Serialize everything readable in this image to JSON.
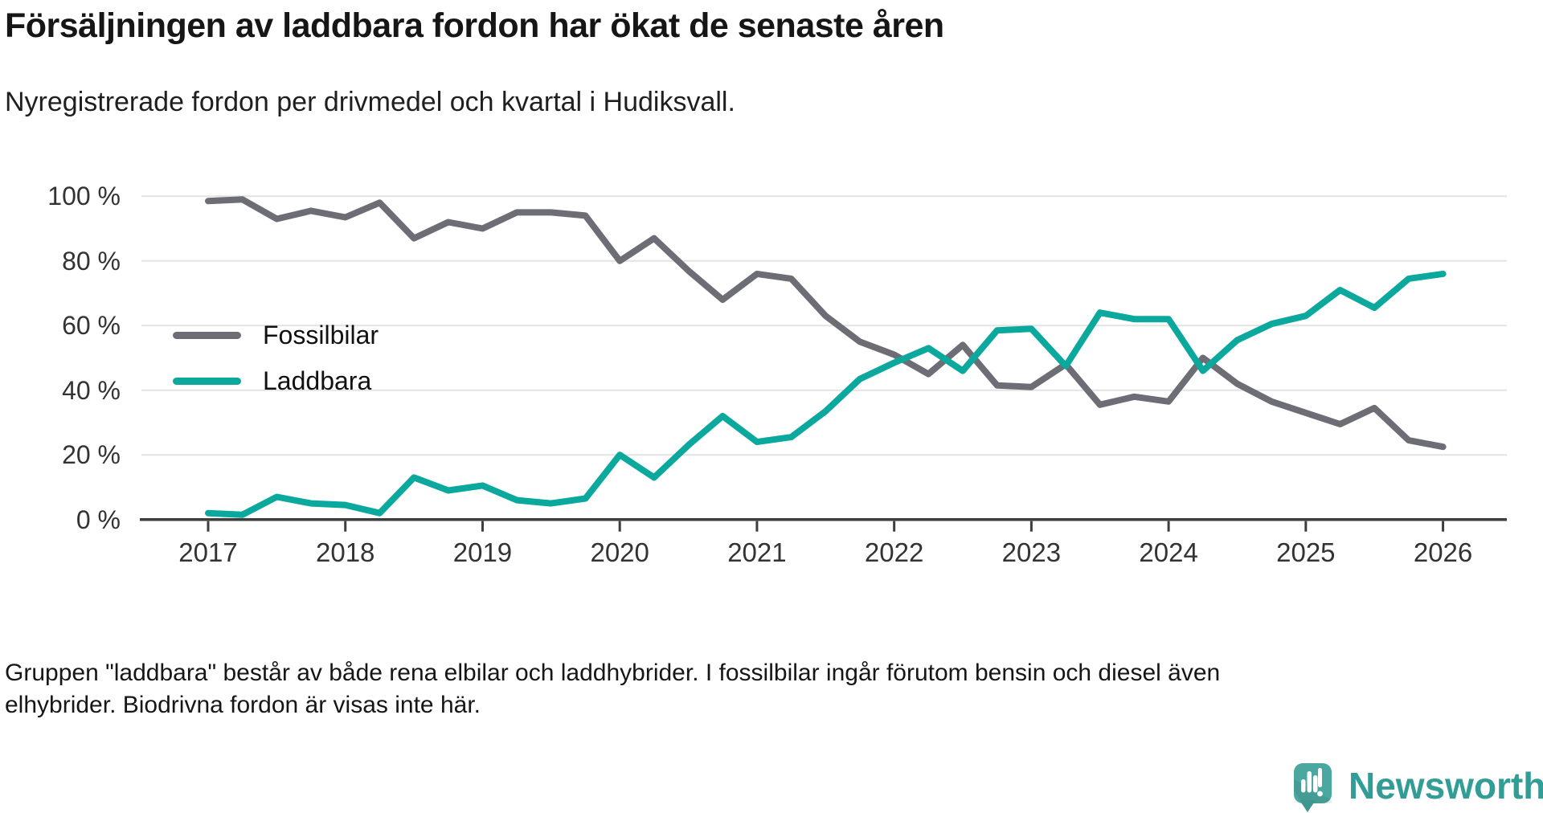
{
  "header": {
    "title": "Försäljningen av laddbara fordon har ökat de senaste åren",
    "subtitle": "Nyregistrerade fordon per drivmedel och kvartal i Hudiksvall."
  },
  "footer": {
    "lines": [
      "Gruppen \"laddbara\" består av både rena elbilar och laddhybrider. I fossilbilar ingår förutom bensin och diesel även",
      "elhybrider. Biodrivna fordon är visas inte här."
    ]
  },
  "branding": {
    "name": "Newsworthy",
    "text_color": "#319d96",
    "icon_color": "#4aa8a0",
    "icon_dark_color": "#3e968f"
  },
  "colors": {
    "fossil": "#6d6e75",
    "laddbara": "#0ba89d",
    "gridline": "#e3e3e3",
    "axis": "#3d3d3d",
    "tick_text": "#333333"
  },
  "chart_data": {
    "type": "line",
    "title": "Försäljningen av laddbara fordon har ökat de senaste åren",
    "subtitle": "Nyregistrerade fordon per drivmedel och kvartal i Hudiksvall.",
    "unit": "%",
    "ylim": [
      0,
      100
    ],
    "grid": true,
    "legend_position": "inside-left",
    "quarters": [
      "2017Q1",
      "2017Q2",
      "2017Q3",
      "2017Q4",
      "2018Q1",
      "2018Q2",
      "2018Q3",
      "2018Q4",
      "2019Q1",
      "2019Q2",
      "2019Q3",
      "2019Q4",
      "2020Q1",
      "2020Q2",
      "2020Q3",
      "2020Q4",
      "2021Q1",
      "2021Q2",
      "2021Q3",
      "2021Q4",
      "2022Q1",
      "2022Q2",
      "2022Q3",
      "2022Q4",
      "2023Q1",
      "2023Q2",
      "2023Q3",
      "2023Q4",
      "2024Q1",
      "2024Q2",
      "2024Q3",
      "2024Q4",
      "2025Q1",
      "2025Q2",
      "2025Q3",
      "2025Q4",
      "2026Q1"
    ],
    "series": [
      {
        "name": "Fossilbilar",
        "color": "#6d6e75",
        "values": [
          98.5,
          99,
          93,
          95.5,
          93.5,
          98,
          87,
          92,
          90,
          95,
          95,
          94,
          80,
          87,
          77,
          68,
          76,
          74.5,
          63,
          55,
          51,
          45,
          54,
          41.5,
          41,
          48,
          35.5,
          38,
          36.5,
          50,
          42,
          36.5,
          33,
          29.5,
          34.5,
          24.5,
          22.5
        ]
      },
      {
        "name": "Laddbara",
        "color": "#0ba89d",
        "values": [
          2,
          1.5,
          7,
          5,
          4.5,
          2,
          13,
          9,
          10.5,
          6,
          5,
          6.5,
          20,
          13,
          23,
          32,
          24,
          25.5,
          33.5,
          43.5,
          48.5,
          53,
          46,
          58.5,
          59,
          47.5,
          64,
          62,
          62,
          46,
          55.5,
          60.5,
          63,
          71,
          65.5,
          74.5,
          76
        ]
      }
    ],
    "xticks": [
      "2017",
      "2018",
      "2019",
      "2020",
      "2021",
      "2022",
      "2023",
      "2024",
      "2025",
      "2026"
    ],
    "yticks": [
      {
        "value": 0,
        "label": "0 %"
      },
      {
        "value": 20,
        "label": "20 %"
      },
      {
        "value": 40,
        "label": "40 %"
      },
      {
        "value": 60,
        "label": "60 %"
      },
      {
        "value": 80,
        "label": "80 %"
      },
      {
        "value": 100,
        "label": "100 %"
      }
    ]
  }
}
